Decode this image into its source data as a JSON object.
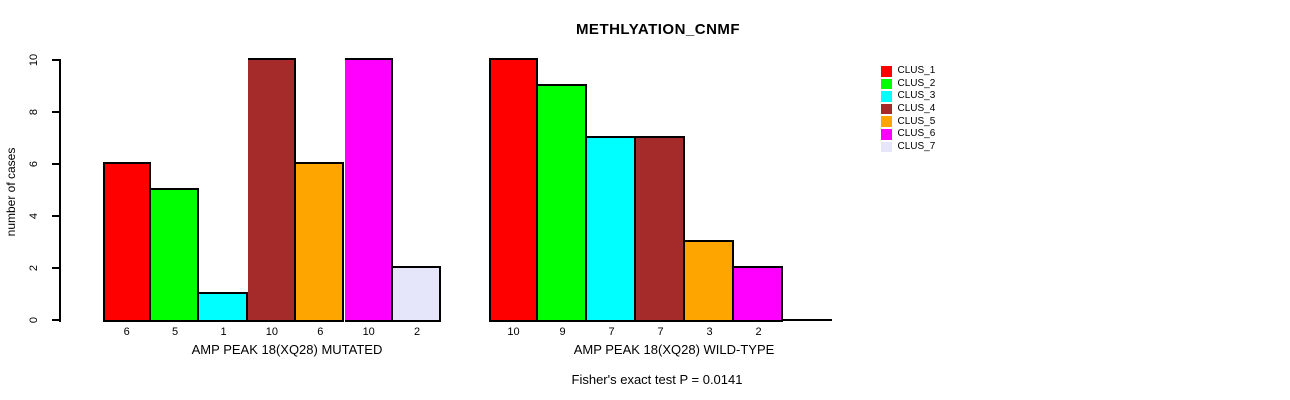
{
  "title": "METHLYATION_CNMF",
  "footnote": "Fisher's exact test P = 0.0141",
  "legend": {
    "items": [
      {
        "label": "CLUS_1",
        "color": "#FF0000"
      },
      {
        "label": "CLUS_2",
        "color": "#00FF00"
      },
      {
        "label": "CLUS_3",
        "color": "#00FFFF"
      },
      {
        "label": "CLUS_4",
        "color": "#A52A2A"
      },
      {
        "label": "CLUS_5",
        "color": "#FFA500"
      },
      {
        "label": "CLUS_6",
        "color": "#FF00FF"
      },
      {
        "label": "CLUS_7",
        "color": "#E6E6FA"
      }
    ]
  },
  "chart_data": {
    "type": "bar",
    "title": "METHLYATION_CNMF",
    "ylabel": "number of cases",
    "xlabel": "",
    "ylim": [
      0,
      10
    ],
    "yticks": [
      0,
      2,
      4,
      6,
      8,
      10
    ],
    "grid": false,
    "legend_position": "right",
    "series_names": [
      "CLUS_1",
      "CLUS_2",
      "CLUS_3",
      "CLUS_4",
      "CLUS_5",
      "CLUS_6",
      "CLUS_7"
    ],
    "series_colors": [
      "#FF0000",
      "#00FF00",
      "#00FFFF",
      "#A52A2A",
      "#FFA500",
      "#FF00FF",
      "#E6E6FA"
    ],
    "groups": [
      {
        "xlabel": "AMP PEAK 18(XQ28) MUTATED",
        "values": [
          6,
          5,
          1,
          10,
          6,
          10,
          2
        ],
        "bar_labels": [
          "6",
          "5",
          "1",
          "10",
          "6",
          "10",
          "2"
        ]
      },
      {
        "xlabel": "AMP PEAK 18(XQ28) WILD-TYPE",
        "values": [
          10,
          9,
          7,
          7,
          3,
          2,
          0
        ],
        "bar_labels": [
          "10",
          "9",
          "7",
          "7",
          "3",
          "2",
          ""
        ]
      }
    ],
    "annotation": "Fisher's exact test P = 0.0141"
  }
}
